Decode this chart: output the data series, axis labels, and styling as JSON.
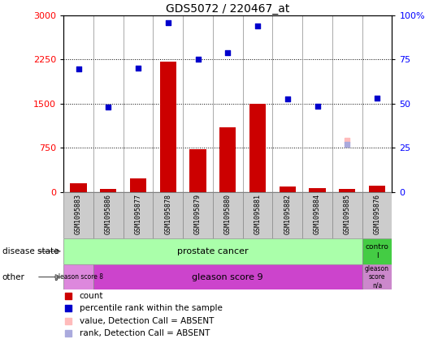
{
  "title": "GDS5072 / 220467_at",
  "samples": [
    "GSM1095883",
    "GSM1095886",
    "GSM1095877",
    "GSM1095878",
    "GSM1095879",
    "GSM1095880",
    "GSM1095881",
    "GSM1095882",
    "GSM1095884",
    "GSM1095885",
    "GSM1095876"
  ],
  "bar_values": [
    150,
    50,
    230,
    2220,
    730,
    1100,
    1500,
    90,
    70,
    50,
    110
  ],
  "blue_dots": [
    2090,
    1450,
    2100,
    2870,
    2260,
    2370,
    2820,
    1580,
    1460,
    null,
    1600
  ],
  "absent_value": [
    null,
    null,
    null,
    null,
    null,
    null,
    null,
    null,
    null,
    880,
    null
  ],
  "absent_rank_scaled": [
    null,
    null,
    null,
    null,
    null,
    null,
    null,
    null,
    null,
    810,
    null
  ],
  "bar_color": "#cc0000",
  "dot_color": "#0000cc",
  "absent_val_color": "#ffbbbb",
  "absent_rank_color": "#aaaadd",
  "ylim_left": [
    0,
    3000
  ],
  "ylim_right": [
    0,
    100
  ],
  "yticks_left": [
    0,
    750,
    1500,
    2250,
    3000
  ],
  "yticks_right": [
    0,
    25,
    50,
    75,
    100
  ],
  "ytick_labels_right": [
    "0",
    "25",
    "50",
    "75",
    "100%"
  ],
  "ytick_labels_left": [
    "0",
    "750",
    "1500",
    "2250",
    "3000"
  ],
  "legend_items": [
    {
      "label": "count",
      "color": "#cc0000"
    },
    {
      "label": "percentile rank within the sample",
      "color": "#0000cc"
    },
    {
      "label": "value, Detection Call = ABSENT",
      "color": "#ffbbbb"
    },
    {
      "label": "rank, Detection Call = ABSENT",
      "color": "#aaaadd"
    }
  ]
}
